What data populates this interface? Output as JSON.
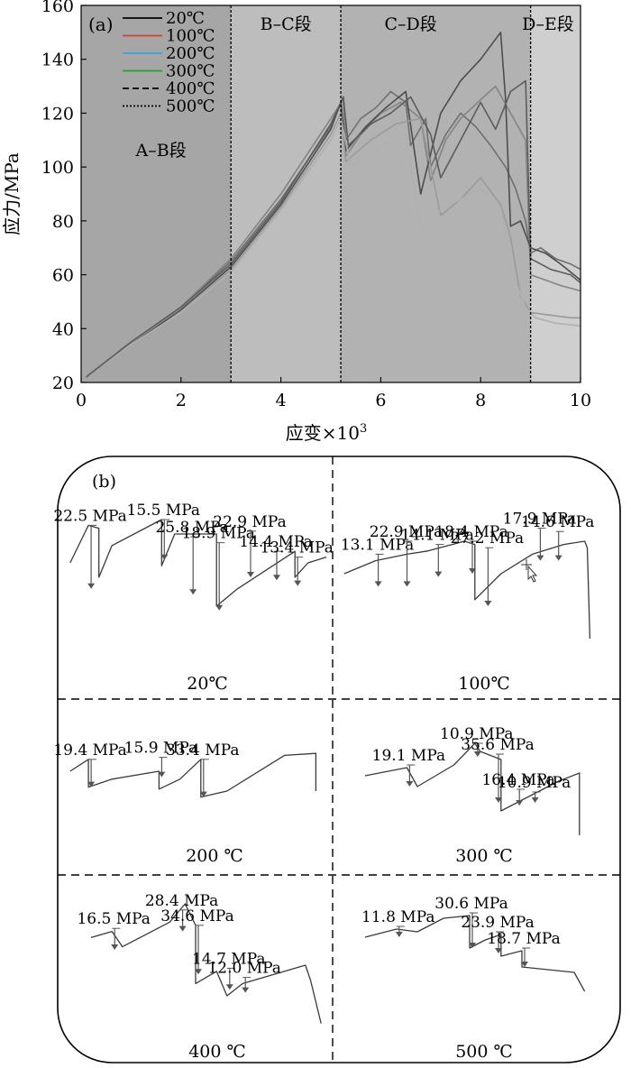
{
  "chart_data": [
    {
      "type": "line",
      "panel_label": "(a)",
      "xlabel": "应变×10",
      "xlabel_sup": "3",
      "ylabel": "应力/MPa",
      "xlim": [
        0,
        10
      ],
      "ylim": [
        20,
        160
      ],
      "xticks": [
        "0",
        "2",
        "4",
        "6",
        "8",
        "10"
      ],
      "yticks": [
        "20",
        "40",
        "60",
        "80",
        "100",
        "120",
        "140",
        "160"
      ],
      "grid": false,
      "legend_position": "top-left",
      "stage_boundaries": [
        3.0,
        5.2,
        9.0
      ],
      "stages": [
        {
          "label": "A–B段",
          "x": 1.6,
          "y": 104,
          "shade": "#a6a6a6"
        },
        {
          "label": "B–C段",
          "x": 4.1,
          "y": 151,
          "shade": "#bdbdbd"
        },
        {
          "label": "C–D段",
          "x": 6.6,
          "y": 151,
          "shade": "#b2b2b2"
        },
        {
          "label": "D–E段",
          "x": 9.35,
          "y": 151,
          "shade": "#cfcfcf"
        }
      ],
      "series": [
        {
          "name": "20℃",
          "legend_color": "#000000",
          "legend_dash": "solid",
          "color": "#6f6f6f",
          "x": [
            0.1,
            1,
            2,
            3,
            4,
            5,
            5.25,
            5.3,
            5.6,
            5.9,
            6.2,
            6.5,
            6.6,
            6.9,
            7.0,
            7.3,
            7.6,
            7.9,
            8.2,
            8.5,
            8.7,
            8.9,
            9.0,
            9.2,
            9.5,
            9.8,
            10
          ],
          "y": [
            22,
            35,
            48,
            65,
            88,
            115,
            126,
            110,
            118,
            122,
            128,
            124,
            108,
            118,
            100,
            112,
            120,
            115,
            108,
            100,
            92,
            80,
            68,
            70,
            66,
            64,
            62
          ]
        },
        {
          "name": "100℃",
          "legend_color": "#e8342a",
          "legend_dash": "solid",
          "color": "#848484",
          "x": [
            0.1,
            1,
            2,
            3,
            4,
            5,
            5.25,
            5.3,
            5.6,
            6.0,
            6.4,
            6.8,
            7.0,
            7.3,
            7.6,
            8.0,
            8.3,
            8.6,
            8.9,
            9.0,
            9.3,
            9.6,
            10
          ],
          "y": [
            22,
            35,
            48,
            66,
            90,
            118,
            125,
            104,
            112,
            120,
            124,
            118,
            95,
            110,
            118,
            125,
            130,
            120,
            110,
            60,
            58,
            56,
            54
          ]
        },
        {
          "name": "200℃",
          "legend_color": "#2ea6e0",
          "legend_dash": "solid",
          "color": "#4d4d4d",
          "x": [
            0.1,
            1,
            2,
            3,
            4,
            5,
            5.2,
            5.3,
            5.7,
            6.1,
            6.5,
            6.8,
            7.2,
            7.6,
            8.0,
            8.4,
            8.5,
            8.6,
            8.8,
            9.0,
            9.3,
            9.6,
            10
          ],
          "y": [
            22,
            34,
            47,
            63,
            86,
            114,
            124,
            106,
            115,
            122,
            128,
            90,
            120,
            132,
            140,
            150,
            125,
            78,
            80,
            70,
            68,
            64,
            58
          ]
        },
        {
          "name": "300℃",
          "legend_color": "#2e9a3a",
          "legend_dash": "solid",
          "color": "#9a9a9a",
          "x": [
            0.1,
            1,
            2,
            3,
            4,
            5,
            5.2,
            5.3,
            5.8,
            6.3,
            6.8,
            7.2,
            7.6,
            8.0,
            8.4,
            8.6,
            8.8,
            9.0,
            9.4,
            9.8,
            10
          ],
          "y": [
            22,
            34,
            46,
            62,
            85,
            112,
            120,
            102,
            110,
            116,
            118,
            82,
            88,
            96,
            86,
            74,
            52,
            46,
            45,
            44,
            44
          ]
        },
        {
          "name": "400℃",
          "legend_color": "#000000",
          "legend_dash": "dashed",
          "color": "#b0b0b0",
          "x": [
            0.1,
            1,
            2,
            3,
            4,
            5,
            5.2,
            5.4,
            6.0,
            6.5,
            6.8,
            7.2,
            7.6,
            8.0,
            8.4,
            8.6,
            8.9,
            9.1,
            9.5,
            10
          ],
          "y": [
            22,
            34,
            46,
            61,
            84,
            110,
            118,
            100,
            108,
            112,
            76,
            84,
            88,
            92,
            85,
            62,
            48,
            44,
            42,
            41
          ]
        },
        {
          "name": "500℃",
          "legend_color": "#000000",
          "legend_dash": "dotted",
          "color": "#5c5c5c",
          "x": [
            0.1,
            1,
            2,
            3,
            4,
            5,
            5.25,
            5.35,
            5.8,
            6.2,
            6.6,
            7.0,
            7.2,
            7.6,
            8.0,
            8.3,
            8.6,
            8.9,
            9.0,
            9.4,
            9.8,
            10
          ],
          "y": [
            22,
            35,
            48,
            64,
            87,
            116,
            126,
            108,
            116,
            120,
            126,
            112,
            96,
            110,
            124,
            114,
            128,
            132,
            66,
            62,
            60,
            57
          ]
        }
      ]
    },
    {
      "type": "line",
      "panel_label": "(b)",
      "panels": [
        {
          "temperature": "20℃",
          "trace": [
            [
              0.02,
              0.6
            ],
            [
              0.09,
              0.34
            ],
            [
              0.13,
              0.36
            ],
            [
              0.13,
              0.7
            ],
            [
              0.18,
              0.48
            ],
            [
              0.37,
              0.3
            ],
            [
              0.37,
              0.62
            ],
            [
              0.42,
              0.4
            ],
            [
              0.58,
              0.4
            ],
            [
              0.58,
              0.9
            ],
            [
              0.66,
              0.78
            ],
            [
              0.88,
              0.52
            ],
            [
              0.88,
              0.7
            ],
            [
              0.93,
              0.6
            ],
            [
              1.0,
              0.56
            ]
          ],
          "drops": [
            {
              "x": 0.09,
              "from": 0.34,
              "to": 0.78,
              "label": "22.5 MPa"
            },
            {
              "x": 0.37,
              "from": 0.3,
              "to": 0.58,
              "label": "15.5 MPa"
            },
            {
              "x": 0.48,
              "from": 0.42,
              "to": 0.82,
              "label": "25.8 MPa"
            },
            {
              "x": 0.58,
              "from": 0.46,
              "to": 0.93,
              "label": "18.9 MPa"
            },
            {
              "x": 0.7,
              "from": 0.38,
              "to": 0.7,
              "label": "22.9 MPa"
            },
            {
              "x": 0.8,
              "from": 0.52,
              "to": 0.72,
              "label": "14.4 MPa"
            },
            {
              "x": 0.88,
              "from": 0.56,
              "to": 0.76,
              "label": "13.4 MPa"
            }
          ]
        },
        {
          "temperature": "100℃",
          "trace": [
            [
              0.02,
              0.6
            ],
            [
              0.14,
              0.52
            ],
            [
              0.26,
              0.48
            ],
            [
              0.34,
              0.46
            ],
            [
              0.48,
              0.4
            ],
            [
              0.52,
              0.42
            ],
            [
              0.52,
              0.76
            ],
            [
              0.62,
              0.6
            ],
            [
              0.74,
              0.48
            ],
            [
              0.86,
              0.42
            ],
            [
              0.94,
              0.4
            ],
            [
              0.95,
              0.44
            ],
            [
              0.96,
              1.0
            ]
          ],
          "drops": [
            {
              "x": 0.14,
              "from": 0.48,
              "to": 0.68,
              "label": "13.1 MPa"
            },
            {
              "x": 0.25,
              "from": 0.4,
              "to": 0.68,
              "label": "22.9 MPa"
            },
            {
              "x": 0.37,
              "from": 0.42,
              "to": 0.62,
              "label": "14.1 MPa"
            },
            {
              "x": 0.5,
              "from": 0.4,
              "to": 0.6,
              "label": "18.4 MPa"
            },
            {
              "x": 0.56,
              "from": 0.44,
              "to": 0.8,
              "label": "27.2 MPa"
            },
            {
              "x": 0.76,
              "from": 0.32,
              "to": 0.52,
              "label": "17.9 MPa"
            },
            {
              "x": 0.83,
              "from": 0.34,
              "to": 0.52,
              "label": "14.6 MPa"
            }
          ]
        },
        {
          "temperature": "200 ℃",
          "trace": [
            [
              0.02,
              0.5
            ],
            [
              0.09,
              0.38
            ],
            [
              0.09,
              0.66
            ],
            [
              0.18,
              0.58
            ],
            [
              0.36,
              0.5
            ],
            [
              0.36,
              0.68
            ],
            [
              0.44,
              0.58
            ],
            [
              0.52,
              0.38
            ],
            [
              0.52,
              0.76
            ],
            [
              0.62,
              0.7
            ],
            [
              0.84,
              0.34
            ],
            [
              0.96,
              0.32
            ],
            [
              0.96,
              0.7
            ]
          ],
          "drops": [
            {
              "x": 0.09,
              "from": 0.38,
              "to": 0.66,
              "label": "19.4 MPa"
            },
            {
              "x": 0.36,
              "from": 0.36,
              "to": 0.56,
              "label": "15.9 MPa"
            },
            {
              "x": 0.52,
              "from": 0.38,
              "to": 0.76,
              "label": "33.4 MPa"
            }
          ]
        },
        {
          "temperature": "300 ℃",
          "trace": [
            [
              0.1,
              0.4
            ],
            [
              0.26,
              0.34
            ],
            [
              0.3,
              0.48
            ],
            [
              0.44,
              0.32
            ],
            [
              0.52,
              0.16
            ],
            [
              0.54,
              0.22
            ],
            [
              0.62,
              0.28
            ],
            [
              0.62,
              0.66
            ],
            [
              0.7,
              0.58
            ],
            [
              0.84,
              0.44
            ],
            [
              0.92,
              0.38
            ],
            [
              0.92,
              0.84
            ]
          ],
          "drops": [
            {
              "x": 0.26,
              "from": 0.32,
              "to": 0.48,
              "label": "19.1 MPa"
            },
            {
              "x": 0.52,
              "from": 0.16,
              "to": 0.26,
              "label": "10.9 MPa"
            },
            {
              "x": 0.6,
              "from": 0.24,
              "to": 0.6,
              "label": "35.6 MPa"
            },
            {
              "x": 0.68,
              "from": 0.5,
              "to": 0.62,
              "label": "16.4 MPa"
            },
            {
              "x": 0.74,
              "from": 0.52,
              "to": 0.6,
              "label": "10.9 MPa"
            }
          ]
        },
        {
          "temperature": "400 ℃",
          "trace": [
            [
              0.1,
              0.32
            ],
            [
              0.18,
              0.28
            ],
            [
              0.22,
              0.38
            ],
            [
              0.4,
              0.22
            ],
            [
              0.46,
              0.1
            ],
            [
              0.5,
              0.24
            ],
            [
              0.5,
              0.62
            ],
            [
              0.58,
              0.54
            ],
            [
              0.62,
              0.7
            ],
            [
              0.68,
              0.62
            ],
            [
              0.92,
              0.5
            ],
            [
              0.94,
              0.6
            ],
            [
              0.98,
              0.88
            ]
          ],
          "drops": [
            {
              "x": 0.18,
              "from": 0.26,
              "to": 0.4,
              "label": "16.5 MPa"
            },
            {
              "x": 0.44,
              "from": 0.14,
              "to": 0.28,
              "label": "28.4 MPa"
            },
            {
              "x": 0.5,
              "from": 0.24,
              "to": 0.56,
              "label": "34.6 MPa"
            },
            {
              "x": 0.62,
              "from": 0.52,
              "to": 0.66,
              "label": "14.7 MPa"
            },
            {
              "x": 0.68,
              "from": 0.58,
              "to": 0.68,
              "label": "12.0 MPa"
            }
          ]
        },
        {
          "temperature": "500 ℃",
          "trace": [
            [
              0.1,
              0.36
            ],
            [
              0.22,
              0.3
            ],
            [
              0.3,
              0.32
            ],
            [
              0.4,
              0.22
            ],
            [
              0.5,
              0.2
            ],
            [
              0.5,
              0.44
            ],
            [
              0.56,
              0.38
            ],
            [
              0.62,
              0.34
            ],
            [
              0.62,
              0.5
            ],
            [
              0.7,
              0.46
            ],
            [
              0.7,
              0.58
            ],
            [
              0.9,
              0.62
            ],
            [
              0.94,
              0.76
            ]
          ],
          "drops": [
            {
              "x": 0.22,
              "from": 0.28,
              "to": 0.36,
              "label": "11.8 MPa"
            },
            {
              "x": 0.5,
              "from": 0.18,
              "to": 0.44,
              "label": "30.6 MPa"
            },
            {
              "x": 0.6,
              "from": 0.32,
              "to": 0.48,
              "label": "23.9 MPa"
            },
            {
              "x": 0.7,
              "from": 0.44,
              "to": 0.58,
              "label": "18.7 MPa"
            }
          ]
        }
      ]
    }
  ]
}
